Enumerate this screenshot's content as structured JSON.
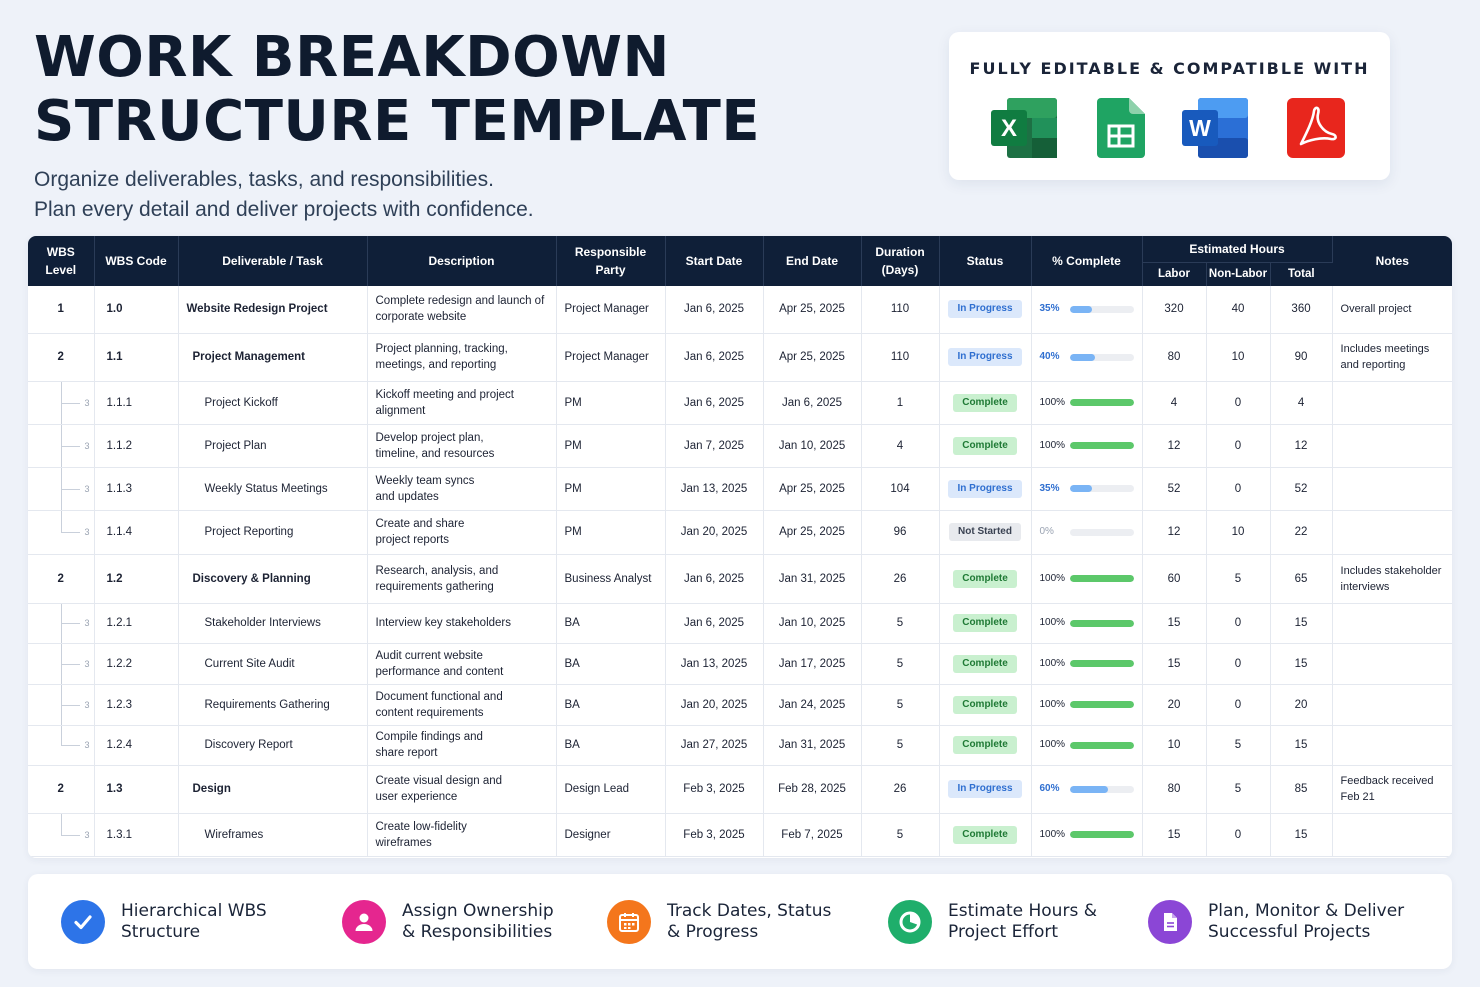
{
  "header": {
    "title_line1": "WORK BREAKDOWN",
    "title_line2": "STRUCTURE TEMPLATE",
    "subtitle_line1": "Organize deliverables, tasks, and responsibilities.",
    "subtitle_line2": "Plan every detail and deliver projects with confidence."
  },
  "compat": {
    "title": "FULLY EDITABLE & COMPATIBLE WITH",
    "icons": [
      "excel-icon",
      "google-sheets-icon",
      "word-icon",
      "pdf-icon"
    ],
    "excel_letter": "X",
    "word_letter": "W"
  },
  "colors": {
    "header_bg": "#0f1f38",
    "in_progress": "#2f6fd0",
    "complete": "#1f7a35",
    "progress_bar_blue": "#7ab4f5",
    "progress_bar_green": "#5cc86a"
  },
  "table": {
    "headers": {
      "wbs_level_1": "WBS",
      "wbs_level_2": "Level",
      "wbs_code": "WBS Code",
      "task": "Deliverable / Task",
      "description": "Description",
      "party_1": "Responsible",
      "party_2": "Party",
      "start": "Start Date",
      "end": "End Date",
      "duration_1": "Duration",
      "duration_2": "(Days)",
      "status": "Status",
      "complete": "% Complete",
      "est_hours": "Estimated Hours",
      "labor": "Labor",
      "nonlabor": "Non-Labor",
      "total": "Total",
      "notes": "Notes"
    },
    "rows": [
      {
        "level": "1",
        "code": "1.0",
        "task": "Website Redesign Project",
        "desc1": "Complete redesign and launch of",
        "desc2": "corporate website",
        "party": "Project Manager",
        "start": "Jan 6, 2025",
        "end": "Apr 25, 2025",
        "duration": "110",
        "status": "In Progress",
        "pct_label": "35%",
        "pct": 0.35,
        "labor": "320",
        "nonlabor": "40",
        "total": "360",
        "notes1": "Overall project",
        "notes2": ""
      },
      {
        "level": "2",
        "code": "1.1",
        "task": "Project Management",
        "desc1": "Project planning, tracking,",
        "desc2": "meetings, and reporting",
        "party": "Project Manager",
        "start": "Jan 6, 2025",
        "end": "Apr 25, 2025",
        "duration": "110",
        "status": "In Progress",
        "pct_label": "40%",
        "pct": 0.4,
        "labor": "80",
        "nonlabor": "10",
        "total": "90",
        "notes1": "Includes meetings",
        "notes2": "and reporting"
      },
      {
        "level": "3",
        "code": "1.1.1",
        "task": "Project Kickoff",
        "desc1": "Kickoff meeting and project",
        "desc2": "alignment",
        "party": "PM",
        "start": "Jan 6, 2025",
        "end": "Jan 6, 2025",
        "duration": "1",
        "status": "Complete",
        "pct_label": "100%",
        "pct": 1.0,
        "labor": "4",
        "nonlabor": "0",
        "total": "4",
        "notes1": "",
        "notes2": ""
      },
      {
        "level": "3",
        "code": "1.1.2",
        "task": "Project Plan",
        "desc1": "Develop project plan,",
        "desc2": "timeline, and resources",
        "party": "PM",
        "start": "Jan 7, 2025",
        "end": "Jan 10, 2025",
        "duration": "4",
        "status": "Complete",
        "pct_label": "100%",
        "pct": 1.0,
        "labor": "12",
        "nonlabor": "0",
        "total": "12",
        "notes1": "",
        "notes2": ""
      },
      {
        "level": "3",
        "code": "1.1.3",
        "task": "Weekly Status Meetings",
        "desc1": "Weekly team syncs",
        "desc2": "and updates",
        "party": "PM",
        "start": "Jan 13, 2025",
        "end": "Apr 25, 2025",
        "duration": "104",
        "status": "In Progress",
        "pct_label": "35%",
        "pct": 0.35,
        "labor": "52",
        "nonlabor": "0",
        "total": "52",
        "notes1": "",
        "notes2": ""
      },
      {
        "level": "3",
        "code": "1.1.4",
        "task": "Project Reporting",
        "desc1": "Create and share",
        "desc2": "project reports",
        "party": "PM",
        "start": "Jan 20, 2025",
        "end": "Apr 25, 2025",
        "duration": "96",
        "status": "Not Started",
        "pct_label": "0%",
        "pct": 0.0,
        "labor": "12",
        "nonlabor": "10",
        "total": "22",
        "notes1": "",
        "notes2": ""
      },
      {
        "level": "2",
        "code": "1.2",
        "task": "Discovery & Planning",
        "desc1": "Research, analysis, and",
        "desc2": "requirements gathering",
        "party": "Business Analyst",
        "start": "Jan 6, 2025",
        "end": "Jan 31, 2025",
        "duration": "26",
        "status": "Complete",
        "pct_label": "100%",
        "pct": 1.0,
        "labor": "60",
        "nonlabor": "5",
        "total": "65",
        "notes1": "Includes stakeholder",
        "notes2": "interviews"
      },
      {
        "level": "3",
        "code": "1.2.1",
        "task": "Stakeholder Interviews",
        "desc1": "Interview key stakeholders",
        "desc2": "",
        "party": "BA",
        "start": "Jan 6, 2025",
        "end": "Jan 10, 2025",
        "duration": "5",
        "status": "Complete",
        "pct_label": "100%",
        "pct": 1.0,
        "labor": "15",
        "nonlabor": "0",
        "total": "15",
        "notes1": "",
        "notes2": ""
      },
      {
        "level": "3",
        "code": "1.2.2",
        "task": "Current Site Audit",
        "desc1": "Audit current website",
        "desc2": "performance and content",
        "party": "BA",
        "start": "Jan 13, 2025",
        "end": "Jan 17, 2025",
        "duration": "5",
        "status": "Complete",
        "pct_label": "100%",
        "pct": 1.0,
        "labor": "15",
        "nonlabor": "0",
        "total": "15",
        "notes1": "",
        "notes2": ""
      },
      {
        "level": "3",
        "code": "1.2.3",
        "task": "Requirements Gathering",
        "desc1": "Document functional and",
        "desc2": "content requirements",
        "party": "BA",
        "start": "Jan 20, 2025",
        "end": "Jan 24, 2025",
        "duration": "5",
        "status": "Complete",
        "pct_label": "100%",
        "pct": 1.0,
        "labor": "20",
        "nonlabor": "0",
        "total": "20",
        "notes1": "",
        "notes2": ""
      },
      {
        "level": "3",
        "code": "1.2.4",
        "task": "Discovery Report",
        "desc1": "Compile findings and",
        "desc2": "share report",
        "party": "BA",
        "start": "Jan 27, 2025",
        "end": "Jan 31, 2025",
        "duration": "5",
        "status": "Complete",
        "pct_label": "100%",
        "pct": 1.0,
        "labor": "10",
        "nonlabor": "5",
        "total": "15",
        "notes1": "",
        "notes2": ""
      },
      {
        "level": "2",
        "code": "1.3",
        "task": "Design",
        "desc1": "Create visual design and",
        "desc2": "user experience",
        "party": "Design Lead",
        "start": "Feb 3, 2025",
        "end": "Feb 28, 2025",
        "duration": "26",
        "status": "In Progress",
        "pct_label": "60%",
        "pct": 0.6,
        "labor": "80",
        "nonlabor": "5",
        "total": "85",
        "notes1": "Feedback received",
        "notes2": "Feb 21"
      },
      {
        "level": "3",
        "code": "1.3.1",
        "task": "Wireframes",
        "desc1": "Create low-fidelity",
        "desc2": "wireframes",
        "party": "Designer",
        "start": "Feb 3, 2025",
        "end": "Feb 7, 2025",
        "duration": "5",
        "status": "Complete",
        "pct_label": "100%",
        "pct": 1.0,
        "labor": "15",
        "nonlabor": "0",
        "total": "15",
        "notes1": "",
        "notes2": ""
      }
    ]
  },
  "features": [
    {
      "icon": "checkmark-icon",
      "color": "#2d74e8",
      "line1": "Hierarchical WBS",
      "line2": "Structure"
    },
    {
      "icon": "person-icon",
      "color": "#e5268f",
      "line1": "Assign Ownership",
      "line2": "& Responsibilities"
    },
    {
      "icon": "calendar-icon",
      "color": "#f4761c",
      "line1": "Track Dates, Status",
      "line2": "& Progress"
    },
    {
      "icon": "pie-chart-icon",
      "color": "#1fae6b",
      "line1": "Estimate Hours &",
      "line2": "Project Effort"
    },
    {
      "icon": "document-icon",
      "color": "#8b46d6",
      "line1": "Plan, Monitor & Deliver",
      "line2": "Successful Projects"
    }
  ]
}
